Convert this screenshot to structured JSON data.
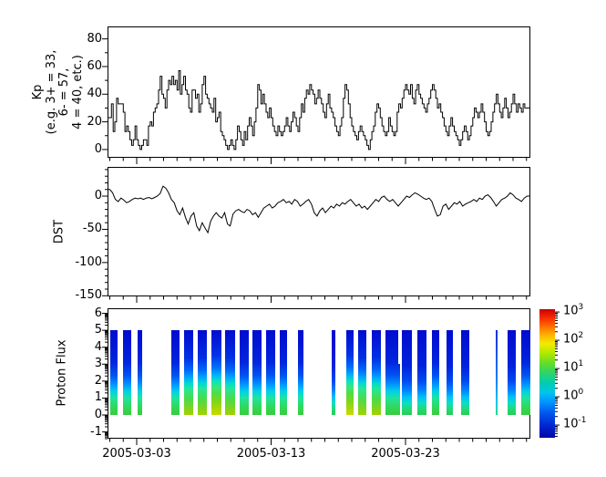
{
  "figure": {
    "background": "#ffffff",
    "line_color": "#000000"
  },
  "panels": {
    "kp": {
      "ylabel_lines": [
        "Kp",
        "(e.g. 3+ = 33,",
        "6- = 57,",
        "4 = 40, etc.)"
      ]
    },
    "dst": {
      "ylabel": "DST"
    },
    "flux": {
      "ylabel": "Proton Flux"
    }
  },
  "x_axis": {
    "start_date": "2005-03-01",
    "end_date": "2005-04-01",
    "date_labels": [
      {
        "day": 2,
        "label": "2005-03-03"
      },
      {
        "day": 12,
        "label": "2005-03-13"
      },
      {
        "day": 22,
        "label": "2005-03-23"
      }
    ]
  },
  "colorbar": {
    "base": "10",
    "major_exponents": [
      3,
      2,
      1,
      0,
      -1
    ],
    "log_range_top": 3.1,
    "log_range_bottom": -1.45,
    "gradient": [
      [
        0,
        "#c80000"
      ],
      [
        0.06,
        "#f52500"
      ],
      [
        0.13,
        "#ff6a00"
      ],
      [
        0.2,
        "#ffb200"
      ],
      [
        0.27,
        "#f0ec00"
      ],
      [
        0.34,
        "#b4e800"
      ],
      [
        0.42,
        "#64dc28"
      ],
      [
        0.5,
        "#2ad46e"
      ],
      [
        0.58,
        "#00ccb4"
      ],
      [
        0.65,
        "#00c4ec"
      ],
      [
        0.72,
        "#0096ff"
      ],
      [
        0.8,
        "#005cf0"
      ],
      [
        0.9,
        "#0028d2"
      ],
      [
        1,
        "#0008a8"
      ]
    ]
  },
  "chart_data": [
    {
      "type": "line",
      "name": "Kp",
      "render": "step",
      "title": "",
      "ylabel": "Kp (e.g. 3+ = 33, 6- = 57, 4 = 40, etc.)",
      "start": "2005-03-01T00:00",
      "cadence_hours": 3,
      "ylim": [
        -6,
        89
      ],
      "yticks": [
        0,
        20,
        40,
        60,
        80
      ],
      "yminors": [
        10,
        30,
        50,
        70
      ],
      "line_color": "#000000",
      "values": [
        23,
        33,
        13,
        20,
        37,
        33,
        33,
        33,
        27,
        13,
        17,
        13,
        7,
        3,
        7,
        17,
        7,
        3,
        0,
        3,
        7,
        7,
        3,
        17,
        20,
        17,
        27,
        30,
        33,
        43,
        53,
        40,
        37,
        30,
        43,
        50,
        47,
        53,
        47,
        50,
        43,
        57,
        40,
        47,
        53,
        43,
        40,
        30,
        27,
        43,
        43,
        37,
        40,
        27,
        33,
        47,
        53,
        40,
        37,
        33,
        30,
        27,
        37,
        20,
        23,
        27,
        13,
        10,
        7,
        3,
        0,
        3,
        7,
        3,
        0,
        7,
        17,
        13,
        7,
        3,
        13,
        7,
        17,
        23,
        17,
        10,
        20,
        30,
        47,
        43,
        33,
        40,
        33,
        27,
        23,
        30,
        23,
        17,
        13,
        10,
        17,
        13,
        10,
        13,
        17,
        23,
        17,
        13,
        20,
        27,
        23,
        17,
        13,
        23,
        33,
        27,
        37,
        43,
        40,
        47,
        43,
        40,
        33,
        37,
        43,
        37,
        33,
        27,
        23,
        33,
        40,
        30,
        27,
        23,
        17,
        13,
        10,
        17,
        23,
        37,
        47,
        43,
        33,
        23,
        17,
        13,
        10,
        7,
        13,
        17,
        13,
        10,
        7,
        3,
        0,
        7,
        13,
        17,
        27,
        33,
        30,
        23,
        17,
        13,
        10,
        13,
        23,
        17,
        13,
        10,
        13,
        27,
        33,
        30,
        37,
        43,
        47,
        43,
        40,
        47,
        37,
        33,
        43,
        47,
        40,
        37,
        33,
        30,
        27,
        33,
        37,
        43,
        47,
        43,
        37,
        30,
        33,
        27,
        23,
        17,
        13,
        10,
        17,
        23,
        17,
        13,
        10,
        7,
        3,
        7,
        13,
        17,
        13,
        7,
        10,
        17,
        23,
        30,
        27,
        23,
        27,
        33,
        27,
        20,
        13,
        10,
        13,
        20,
        27,
        33,
        40,
        33,
        27,
        23,
        30,
        37,
        30,
        23,
        27,
        33,
        40,
        33,
        27,
        33,
        30,
        27,
        33,
        30
      ]
    },
    {
      "type": "line",
      "name": "DST",
      "render": "line",
      "title": "",
      "ylabel": "DST",
      "start": "2005-03-01T00:00",
      "cadence_hours": 5,
      "ylim": [
        -151,
        44
      ],
      "yticks": [
        0,
        -50,
        -100,
        -150
      ],
      "yminor_step": 10,
      "line_color": "#000000",
      "values": [
        10,
        5,
        -5,
        -8,
        -3,
        -6,
        -10,
        -8,
        -5,
        -3,
        -4,
        -3,
        -5,
        -3,
        -2,
        -4,
        -2,
        0,
        4,
        15,
        12,
        5,
        -5,
        -10,
        -22,
        -28,
        -18,
        -32,
        -42,
        -30,
        -25,
        -45,
        -52,
        -40,
        -48,
        -55,
        -38,
        -30,
        -25,
        -30,
        -33,
        -25,
        -42,
        -45,
        -27,
        -22,
        -20,
        -23,
        -25,
        -20,
        -22,
        -28,
        -25,
        -32,
        -25,
        -18,
        -15,
        -12,
        -18,
        -15,
        -10,
        -8,
        -5,
        -10,
        -8,
        -12,
        -5,
        -8,
        -15,
        -12,
        -8,
        -5,
        -12,
        -25,
        -30,
        -22,
        -18,
        -25,
        -20,
        -15,
        -18,
        -12,
        -15,
        -10,
        -12,
        -8,
        -5,
        -10,
        -15,
        -12,
        -18,
        -15,
        -20,
        -15,
        -10,
        -5,
        -8,
        -2,
        0,
        -5,
        -8,
        -5,
        -10,
        -15,
        -10,
        -5,
        0,
        -2,
        2,
        5,
        3,
        0,
        -3,
        -5,
        -3,
        -8,
        -20,
        -30,
        -28,
        -15,
        -12,
        -20,
        -15,
        -10,
        -12,
        -8,
        -15,
        -12,
        -10,
        -8,
        -5,
        -8,
        -3,
        -5,
        0,
        2,
        -2,
        -8,
        -15,
        -10,
        -5,
        -3,
        0,
        5,
        2,
        -3,
        -5,
        -8,
        -3,
        0
      ]
    },
    {
      "type": "heatmap",
      "name": "Proton Flux",
      "title": "",
      "ylabel": "Proton Flux",
      "ylim": [
        -1.4,
        6.3
      ],
      "yticks": [
        -1,
        0,
        1,
        2,
        3,
        4,
        5,
        6
      ],
      "bar_y_range": [
        0,
        5
      ],
      "colorbar_units": "log10 flux, 1e-1 to 1e3",
      "palettes": {
        "p_low": [
          [
            0,
            "#000bcf"
          ],
          [
            0.42,
            "#0022dd"
          ],
          [
            0.6,
            "#004af0"
          ],
          [
            0.71,
            "#0083ff"
          ],
          [
            0.79,
            "#00c0f8"
          ],
          [
            0.86,
            "#0ae0c0"
          ],
          [
            0.93,
            "#23d97a"
          ],
          [
            1,
            "#27cc52"
          ]
        ],
        "p_mid": [
          [
            0,
            "#000bcf"
          ],
          [
            0.38,
            "#0026de"
          ],
          [
            0.54,
            "#0056f2"
          ],
          [
            0.64,
            "#0095ff"
          ],
          [
            0.72,
            "#00d0e8"
          ],
          [
            0.8,
            "#1fe4a0"
          ],
          [
            0.9,
            "#30d95c"
          ],
          [
            1,
            "#38cc3f"
          ]
        ],
        "p_high": [
          [
            0,
            "#000bcf"
          ],
          [
            0.33,
            "#0030e4"
          ],
          [
            0.47,
            "#0068f8"
          ],
          [
            0.56,
            "#00a8fa"
          ],
          [
            0.63,
            "#00dcd0"
          ],
          [
            0.7,
            "#2ae690"
          ],
          [
            0.8,
            "#44dc50"
          ],
          [
            0.92,
            "#7fd41e"
          ],
          [
            1,
            "#a0d400"
          ]
        ],
        "p_vhigh": [
          [
            0,
            "#000bcf"
          ],
          [
            0.3,
            "#0034e8"
          ],
          [
            0.44,
            "#0070fa"
          ],
          [
            0.53,
            "#00b2f8"
          ],
          [
            0.6,
            "#0ae2c2"
          ],
          [
            0.67,
            "#39e878"
          ],
          [
            0.76,
            "#55dc3a"
          ],
          [
            0.87,
            "#90d410"
          ],
          [
            1,
            "#c8dc00"
          ]
        ],
        "p_thin": [
          [
            0,
            "#0030dd"
          ],
          [
            0.6,
            "#0080ff"
          ],
          [
            0.85,
            "#00c8e8"
          ],
          [
            1,
            "#22dd88"
          ]
        ]
      },
      "bars": [
        {
          "f0": 0.0065,
          "f1": 0.0237,
          "palette": "p_mid"
        },
        {
          "f0": 0.0366,
          "f1": 0.056,
          "palette": "p_mid"
        },
        {
          "f0": 0.0711,
          "f1": 0.0819,
          "palette": "p_mid"
        },
        {
          "f0": 0.1509,
          "f1": 0.1703,
          "palette": "p_mid"
        },
        {
          "f0": 0.181,
          "f1": 0.2026,
          "palette": "p_high"
        },
        {
          "f0": 0.2134,
          "f1": 0.2349,
          "palette": "p_high"
        },
        {
          "f0": 0.2457,
          "f1": 0.2694,
          "palette": "p_vhigh"
        },
        {
          "f0": 0.278,
          "f1": 0.3017,
          "palette": "p_high"
        },
        {
          "f0": 0.3125,
          "f1": 0.3341,
          "palette": "p_mid"
        },
        {
          "f0": 0.3427,
          "f1": 0.3642,
          "palette": "p_mid"
        },
        {
          "f0": 0.375,
          "f1": 0.3966,
          "palette": "p_mid"
        },
        {
          "f0": 0.4073,
          "f1": 0.4246,
          "palette": "p_mid"
        },
        {
          "f0": 0.4504,
          "f1": 0.4634,
          "palette": "p_mid"
        },
        {
          "f0": 0.5302,
          "f1": 0.5388,
          "palette": "p_low"
        },
        {
          "f0": 0.5647,
          "f1": 0.5819,
          "palette": "p_vhigh"
        },
        {
          "f0": 0.5927,
          "f1": 0.6121,
          "palette": "p_high"
        },
        {
          "f0": 0.625,
          "f1": 0.6466,
          "palette": "p_high"
        },
        {
          "f0": 0.6573,
          "f1": 0.6918,
          "palette": "p_mid",
          "notch": {
            "f0": 0.6875,
            "f1": 0.694,
            "depth": 0.4
          }
        },
        {
          "f0": 0.6961,
          "f1": 0.7198,
          "palette": "p_low"
        },
        {
          "f0": 0.7328,
          "f1": 0.7543,
          "palette": "p_low"
        },
        {
          "f0": 0.7672,
          "f1": 0.7845,
          "palette": "p_mid"
        },
        {
          "f0": 0.8017,
          "f1": 0.8168,
          "palette": "p_low"
        },
        {
          "f0": 0.8362,
          "f1": 0.8556,
          "palette": "p_low"
        },
        {
          "f0": 0.9181,
          "f1": 0.9224,
          "palette": "p_thin"
        },
        {
          "f0": 0.9461,
          "f1": 0.9655,
          "palette": "p_low"
        },
        {
          "f0": 0.9784,
          "f1": 1.0,
          "palette": "p_mid"
        }
      ]
    }
  ]
}
